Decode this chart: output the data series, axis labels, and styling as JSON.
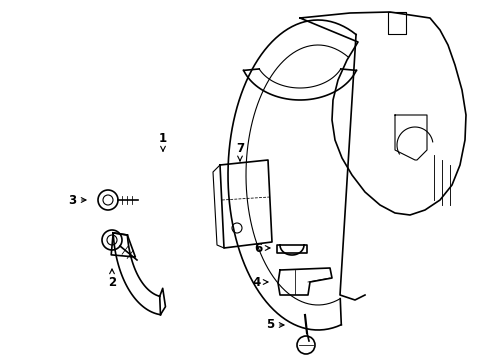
{
  "background_color": "#ffffff",
  "line_color": "#000000",
  "fig_width": 4.89,
  "fig_height": 3.6,
  "dpi": 100,
  "label_fontsize": 8.5
}
